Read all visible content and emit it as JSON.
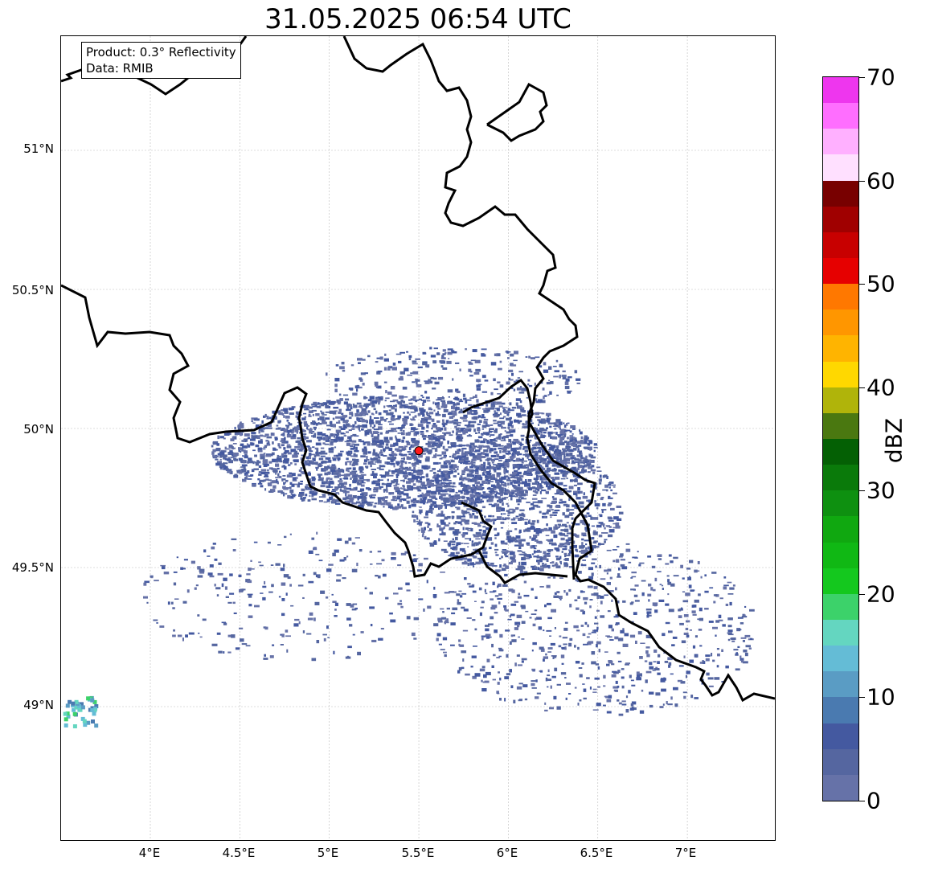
{
  "title": "31.05.2025 06:54 UTC",
  "info": {
    "product": "Product: 0.3° Reflectivity",
    "data": "Data: RMIB"
  },
  "axes": {
    "lat_labels": [
      "51°N",
      "50.5°N",
      "50°N",
      "49.5°N",
      "49°N"
    ],
    "lon_labels": [
      "4°E",
      "4.5°E",
      "5°E",
      "5.5°E",
      "6°E",
      "6.5°E",
      "7°E"
    ]
  },
  "radar_site": {
    "name": "radar-site",
    "lon": 5.5,
    "lat": 49.92,
    "color": "#ff1a1a"
  },
  "colorbar": {
    "label": "dBZ",
    "ticks": [
      "0",
      "10",
      "20",
      "30",
      "40",
      "50",
      "60",
      "70"
    ],
    "colors": [
      "#6672a8",
      "#5566a0",
      "#4459a0",
      "#4a7ab0",
      "#5a9cc4",
      "#64bcd6",
      "#64d6c0",
      "#3cd26a",
      "#14c81e",
      "#10b814",
      "#10a810",
      "#0e9010",
      "#0a7a0a",
      "#046004",
      "#4a7810",
      "#b0b40a",
      "#ffd800",
      "#ffb400",
      "#ff9600",
      "#ff7800",
      "#e60000",
      "#c80000",
      "#a00000",
      "#780000",
      "#ffe0ff",
      "#ffb0ff",
      "#ff6eff",
      "#ee36ee"
    ]
  }
}
